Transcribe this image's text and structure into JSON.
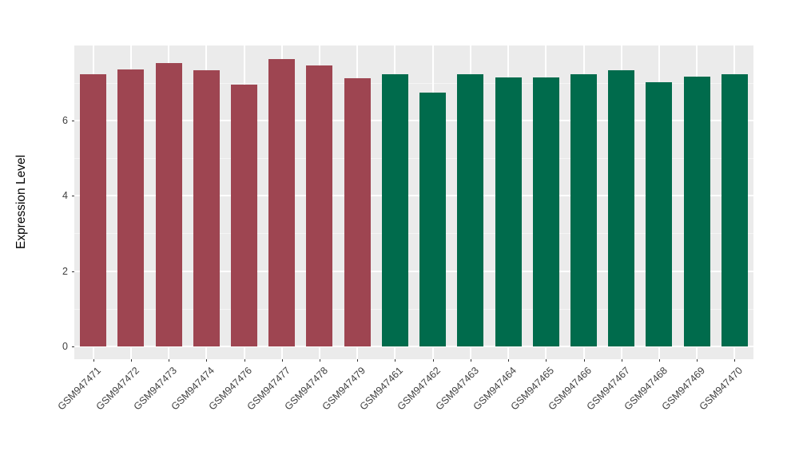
{
  "chart_data": {
    "type": "bar",
    "title": "",
    "xlabel": "",
    "ylabel": "Expression Level",
    "categories": [
      "GSM947471",
      "GSM947472",
      "GSM947473",
      "GSM947474",
      "GSM947476",
      "GSM947477",
      "GSM947478",
      "GSM947479",
      "GSM947461",
      "GSM947462",
      "GSM947463",
      "GSM947464",
      "GSM947465",
      "GSM947466",
      "GSM947467",
      "GSM947468",
      "GSM947469",
      "GSM947470"
    ],
    "values": [
      7.22,
      7.35,
      7.53,
      7.34,
      6.95,
      7.62,
      7.46,
      7.11,
      7.22,
      6.74,
      7.22,
      7.15,
      7.15,
      7.22,
      7.33,
      7.02,
      7.17,
      7.22
    ],
    "bar_colors": [
      "#9E4551",
      "#9E4551",
      "#9E4551",
      "#9E4551",
      "#9E4551",
      "#9E4551",
      "#9E4551",
      "#9E4551",
      "#006B4C",
      "#006B4C",
      "#006B4C",
      "#006B4C",
      "#006B4C",
      "#006B4C",
      "#006B4C",
      "#006B4C",
      "#006B4C",
      "#006B4C"
    ],
    "group_colors": {
      "left_group": "#9E4551",
      "right_group": "#006B4C"
    },
    "yticks": [
      0,
      2,
      4,
      6
    ],
    "minor_yticks": [
      1,
      3,
      5,
      7
    ],
    "ylim": [
      0,
      8
    ],
    "grid": true,
    "legend_position": "none",
    "panel_bg": "#EBEBEB",
    "grid_major_color": "#FFFFFF",
    "grid_minor_color": "#F5F5F5",
    "axis_text_color": "#404040",
    "tick_mark_color": "#333333",
    "figure_bg": "#FFFFFF"
  }
}
